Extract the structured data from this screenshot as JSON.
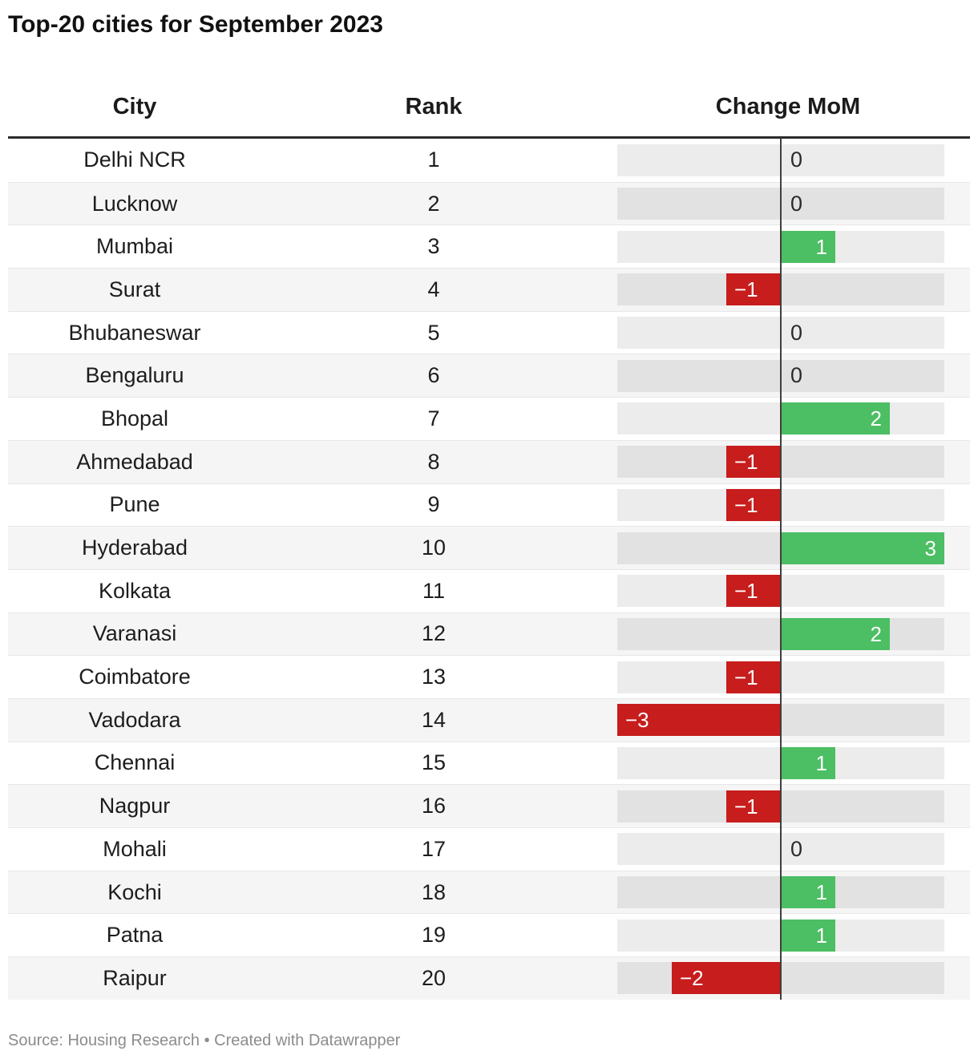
{
  "title": "Top-20 cities for September 2023",
  "source_note": "Source: Housing Research • Created with Datawrapper",
  "colors": {
    "positive": "#4cbe63",
    "negative": "#c71d1d",
    "track": "#ececec",
    "zero_line": "#3f3f3f",
    "stripe": "#f5f5f5",
    "header_rule": "#2b2b2b"
  },
  "table": {
    "columns": [
      "City",
      "Rank",
      "Change MoM"
    ],
    "rows": [
      {
        "city": "Delhi NCR",
        "rank": 1,
        "change": 0
      },
      {
        "city": "Lucknow",
        "rank": 2,
        "change": 0
      },
      {
        "city": "Mumbai",
        "rank": 3,
        "change": 1
      },
      {
        "city": "Surat",
        "rank": 4,
        "change": -1
      },
      {
        "city": "Bhubaneswar",
        "rank": 5,
        "change": 0
      },
      {
        "city": "Bengaluru",
        "rank": 6,
        "change": 0
      },
      {
        "city": "Bhopal",
        "rank": 7,
        "change": 2
      },
      {
        "city": "Ahmedabad",
        "rank": 8,
        "change": -1
      },
      {
        "city": "Pune",
        "rank": 9,
        "change": -1
      },
      {
        "city": "Hyderabad",
        "rank": 10,
        "change": 3
      },
      {
        "city": "Kolkata",
        "rank": 11,
        "change": -1
      },
      {
        "city": "Varanasi",
        "rank": 12,
        "change": 2
      },
      {
        "city": "Coimbatore",
        "rank": 13,
        "change": -1
      },
      {
        "city": "Vadodara",
        "rank": 14,
        "change": -3
      },
      {
        "city": "Chennai",
        "rank": 15,
        "change": 1
      },
      {
        "city": "Nagpur",
        "rank": 16,
        "change": -1
      },
      {
        "city": "Mohali",
        "rank": 17,
        "change": 0
      },
      {
        "city": "Kochi",
        "rank": 18,
        "change": 1
      },
      {
        "city": "Patna",
        "rank": 19,
        "change": 1
      },
      {
        "city": "Raipur",
        "rank": 20,
        "change": -2
      }
    ]
  },
  "chart_data": {
    "type": "bar",
    "orientation": "horizontal",
    "title": "Top-20 cities for September 2023",
    "xlabel": "Change MoM",
    "ylabel": "City",
    "categories": [
      "Delhi NCR",
      "Lucknow",
      "Mumbai",
      "Surat",
      "Bhubaneswar",
      "Bengaluru",
      "Bhopal",
      "Ahmedabad",
      "Pune",
      "Hyderabad",
      "Kolkata",
      "Varanasi",
      "Coimbatore",
      "Vadodara",
      "Chennai",
      "Nagpur",
      "Mohali",
      "Kochi",
      "Patna",
      "Raipur"
    ],
    "ranks": [
      1,
      2,
      3,
      4,
      5,
      6,
      7,
      8,
      9,
      10,
      11,
      12,
      13,
      14,
      15,
      16,
      17,
      18,
      19,
      20
    ],
    "series": [
      {
        "name": "Change MoM",
        "values": [
          0,
          0,
          1,
          -1,
          0,
          0,
          2,
          -1,
          -1,
          3,
          -1,
          2,
          -1,
          -3,
          1,
          -1,
          0,
          1,
          1,
          -2
        ]
      }
    ],
    "xlim": [
      -3,
      3
    ],
    "grid": false,
    "legend": false,
    "zero_axis": true,
    "bar_label_position": "inside-end",
    "positive_color": "#4cbe63",
    "negative_color": "#c71d1d"
  }
}
